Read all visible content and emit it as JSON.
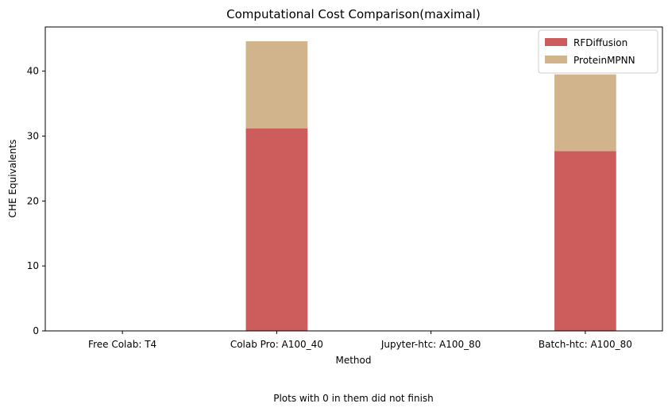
{
  "chart_data": {
    "type": "bar",
    "stacked": true,
    "title": "Computational Cost Comparison(maximal)",
    "xlabel": "Method",
    "ylabel": "CHE Equivalents",
    "footnote": "Plots with 0 in them did not finish",
    "categories": [
      "Free Colab: T4",
      "Colab Pro: A100_40",
      "Jupyter-htc: A100_80",
      "Batch-htc: A100_80"
    ],
    "series": [
      {
        "name": "RFDiffusion",
        "color": "#cd5c5c",
        "values": [
          0,
          31.2,
          0,
          27.7
        ]
      },
      {
        "name": "ProteinMPNN",
        "color": "#d2b48c",
        "values": [
          0,
          13.4,
          0,
          11.8
        ]
      }
    ],
    "ylim": [
      0,
      46.8
    ],
    "yticks": [
      0,
      10,
      20,
      30,
      40
    ],
    "grid": false,
    "legend": "top-right"
  }
}
